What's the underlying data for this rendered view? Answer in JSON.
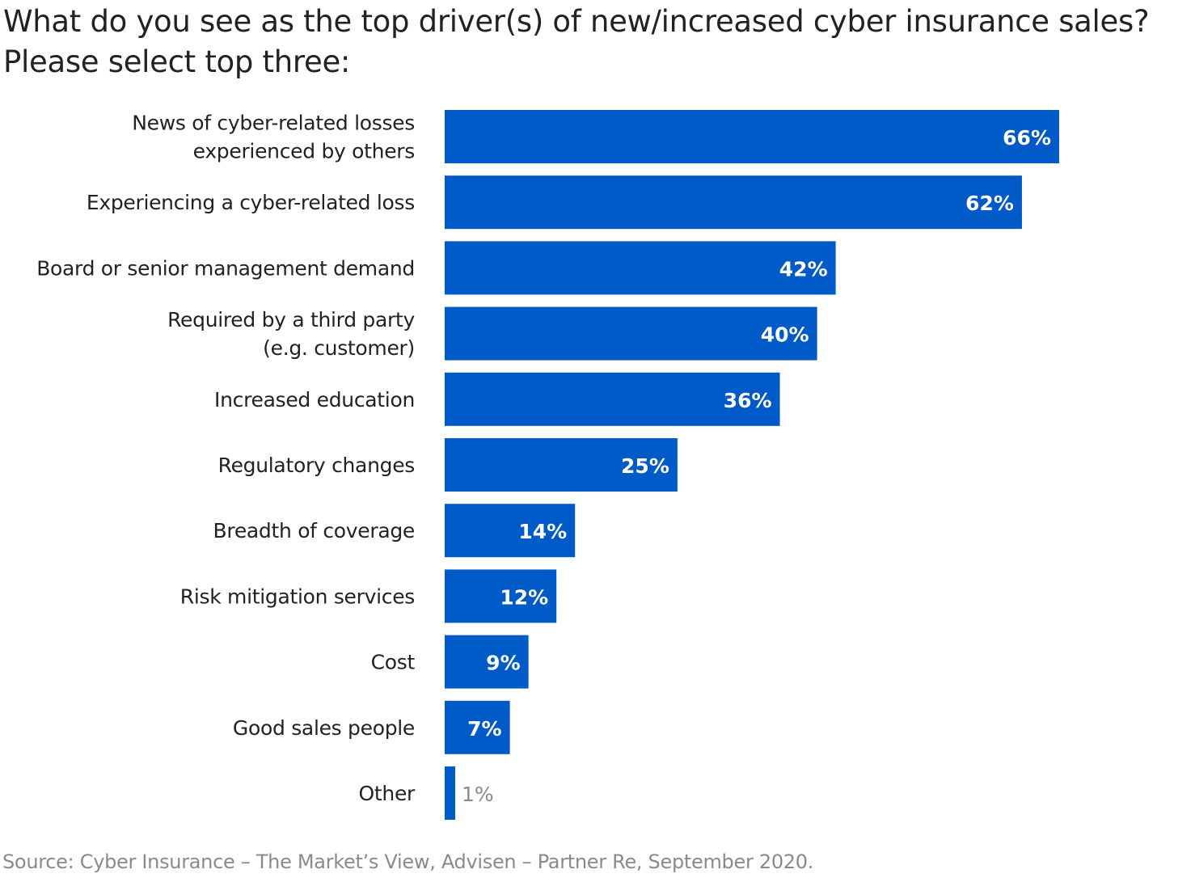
{
  "title_lines": [
    "What do you see as the top driver(s) of new/increased cyber insurance sales?",
    "Please select top three:"
  ],
  "source": "Source: Cyber Insurance – The Market’s View, Advisen – Partner Re, September 2020.",
  "chart_data": {
    "type": "bar",
    "orientation": "horizontal",
    "title": "What do you see as the top driver(s) of new/increased cyber insurance sales? Please select top three:",
    "categories": [
      [
        "News of cyber-related losses",
        "experienced by others"
      ],
      [
        "Experiencing a cyber-related loss"
      ],
      [
        "Board or senior management demand"
      ],
      [
        "Required by a third party",
        "(e.g. customer)"
      ],
      [
        "Increased education"
      ],
      [
        "Regulatory changes"
      ],
      [
        "Breadth of coverage"
      ],
      [
        "Risk mitigation services"
      ],
      [
        "Cost"
      ],
      [
        "Good sales people"
      ],
      [
        "Other"
      ]
    ],
    "values": [
      66,
      62,
      42,
      40,
      36,
      25,
      14,
      12,
      9,
      7,
      1
    ],
    "data_labels": [
      "66%",
      "62%",
      "42%",
      "40%",
      "36%",
      "25%",
      "14%",
      "12%",
      "9%",
      "7%",
      "1%"
    ],
    "unit": "%",
    "xlim": [
      0,
      66
    ],
    "grid": false,
    "legend": "none",
    "colors": {
      "bar": "#005AC8",
      "label_inside": "#ffffff",
      "label_outside": "#8a8a8a",
      "category_text": "#222222"
    }
  }
}
